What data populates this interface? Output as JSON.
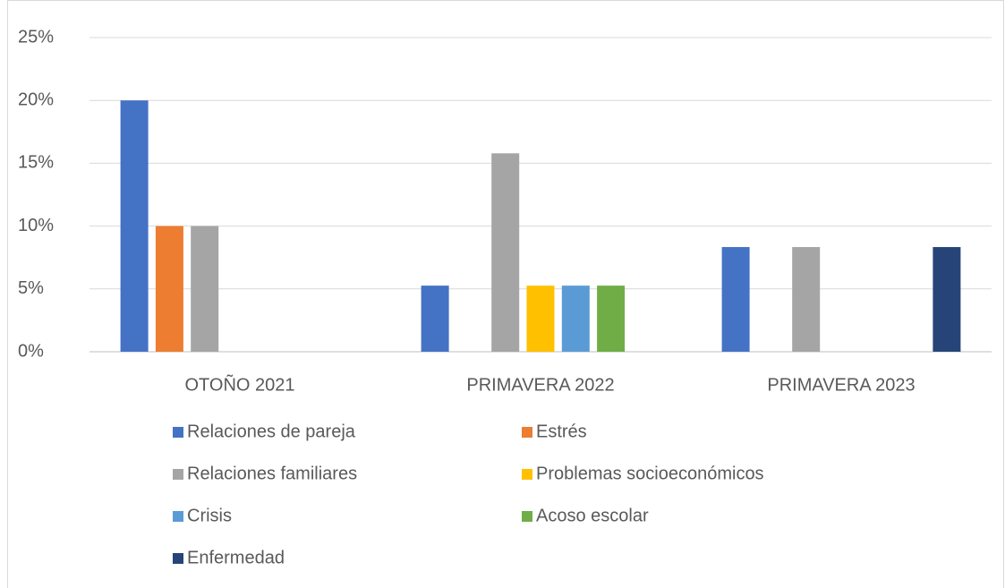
{
  "chart_data": {
    "type": "bar",
    "categories": [
      "OTOÑO 2021",
      "PRIMAVERA 2022",
      "PRIMAVERA 2023"
    ],
    "series": [
      {
        "name": "Relaciones de pareja",
        "color": "#4472c4",
        "values": [
          20,
          5.26,
          8.33
        ]
      },
      {
        "name": "Estrés",
        "color": "#ed7d31",
        "values": [
          10,
          0,
          0
        ]
      },
      {
        "name": "Relaciones familiares",
        "color": "#a5a5a5",
        "values": [
          10,
          15.79,
          8.33
        ]
      },
      {
        "name": "Problemas socioeconómicos",
        "color": "#ffc000",
        "values": [
          0,
          5.26,
          0
        ]
      },
      {
        "name": "Crisis",
        "color": "#5b9bd5",
        "values": [
          0,
          5.26,
          0
        ]
      },
      {
        "name": "Acoso escolar",
        "color": "#70ad47",
        "values": [
          0,
          5.26,
          0
        ]
      },
      {
        "name": "Enfermedad",
        "color": "#264478",
        "values": [
          0,
          0,
          8.33
        ]
      }
    ],
    "ylim": [
      0,
      25
    ],
    "yticks": [
      {
        "value": 0,
        "label": "0%"
      },
      {
        "value": 5,
        "label": "5%"
      },
      {
        "value": 10,
        "label": "10%"
      },
      {
        "value": 15,
        "label": "15%"
      },
      {
        "value": 20,
        "label": "20%"
      },
      {
        "value": 25,
        "label": "25%"
      }
    ],
    "grid": true,
    "legend": "bottom"
  }
}
